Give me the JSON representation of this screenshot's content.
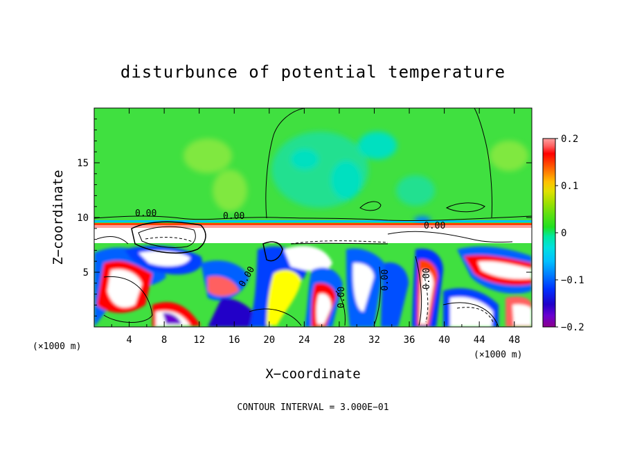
{
  "chart_data": {
    "type": "heatmap",
    "title": "disturbunce of potential temperature",
    "xlabel": "X−coordinate",
    "ylabel": "Z−coordinate",
    "x_unit_left": "(×1000 m)",
    "x_unit_right": "(×1000 m)",
    "footer": "CONTOUR INTERVAL = 3.000E−01",
    "xlim": [
      0,
      50
    ],
    "ylim": [
      0,
      20
    ],
    "x_ticks": [
      "4",
      "8",
      "12",
      "16",
      "20",
      "24",
      "28",
      "32",
      "36",
      "40",
      "44",
      "48"
    ],
    "x_tick_values": [
      4,
      8,
      12,
      16,
      20,
      24,
      28,
      32,
      36,
      40,
      44,
      48
    ],
    "y_ticks": [
      "5",
      "10",
      "15"
    ],
    "y_tick_values": [
      5,
      10,
      15
    ],
    "colorbar": {
      "range": [
        -0.2,
        0.2
      ],
      "tick_labels": [
        "0.2",
        "0.1",
        "0",
        "−0.1",
        "−0.2"
      ],
      "tick_values": [
        0.2,
        0.1,
        0,
        -0.1,
        -0.2
      ],
      "colors": [
        "#8b008b",
        "#6a00d0",
        "#2000c8",
        "#0030ff",
        "#0080ff",
        "#00c0ff",
        "#00e0e0",
        "#00e8a0",
        "#00e070",
        "#20e020",
        "#60e010",
        "#a0e000",
        "#e0e000",
        "#ffc000",
        "#ff8000",
        "#ff4000",
        "#ff0000",
        "#ff6060",
        "#ffa0a0"
      ]
    },
    "contour_labels": [
      "0.00",
      "0.00",
      "0.00",
      "0.00",
      "0.00",
      "0.00",
      "0.00"
    ],
    "regions": {
      "upper_band": {
        "z_range": [
          9.5,
          20
        ],
        "value": 0.0
      },
      "lower_band": {
        "z_range": [
          0,
          9.5
        ],
        "value_range": [
          -0.2,
          0.2
        ]
      }
    }
  }
}
